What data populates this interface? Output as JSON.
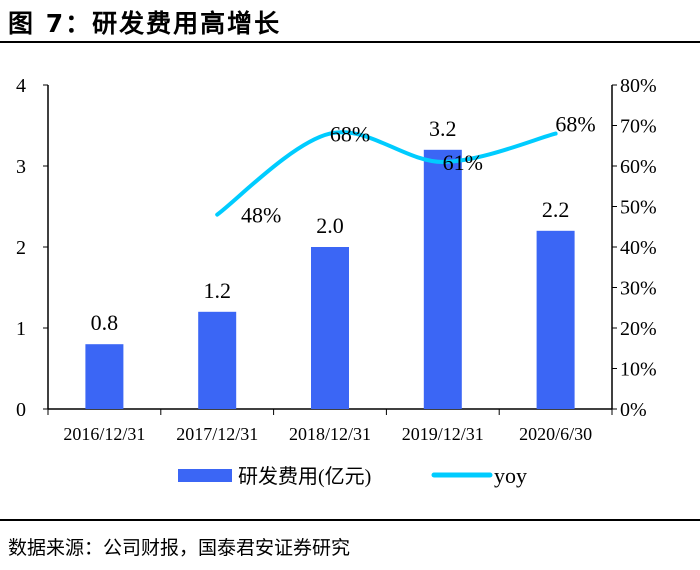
{
  "header": {
    "title": "图 7：研发费用高增长"
  },
  "footer": {
    "source": "数据来源：公司财报，国泰君安证券研究"
  },
  "chart_data": {
    "type": "bar+line",
    "categories": [
      "2016/12/31",
      "2017/12/31",
      "2018/12/31",
      "2019/12/31",
      "2020/6/30"
    ],
    "series": [
      {
        "name": "研发费用(亿元)",
        "type": "bar",
        "axis": "left",
        "color": "#3B66F5",
        "values": [
          0.8,
          1.2,
          2.0,
          3.2,
          2.2
        ],
        "labels": [
          "0.8",
          "1.2",
          "2.0",
          "3.2",
          "2.2"
        ]
      },
      {
        "name": "yoy",
        "type": "line",
        "axis": "right",
        "color": "#00CCFF",
        "values": [
          null,
          48,
          68,
          61,
          68
        ],
        "labels": [
          "",
          "48%",
          "68%",
          "61%",
          "68%"
        ]
      }
    ],
    "left_axis": {
      "ylim": [
        0,
        4
      ],
      "ticks": [
        "0",
        "1",
        "2",
        "3",
        "4"
      ]
    },
    "right_axis": {
      "ylim": [
        0,
        80
      ],
      "ticks": [
        "0%",
        "10%",
        "20%",
        "30%",
        "40%",
        "50%",
        "60%",
        "70%",
        "80%"
      ]
    },
    "grid": false,
    "legend": "bottom"
  }
}
